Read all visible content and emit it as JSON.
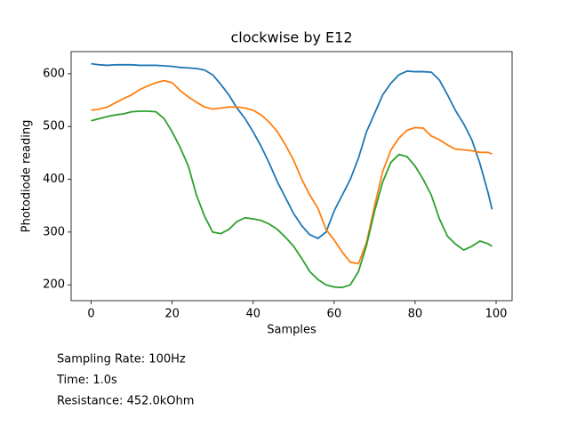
{
  "chart_data": {
    "type": "line",
    "title": "clockwise by E12",
    "x_label": "Samples",
    "y_label": "Photodiode reading",
    "x": [
      0,
      2,
      4,
      6,
      8,
      10,
      12,
      14,
      16,
      18,
      20,
      22,
      24,
      26,
      28,
      30,
      32,
      34,
      36,
      38,
      40,
      42,
      44,
      46,
      48,
      50,
      52,
      54,
      56,
      58,
      60,
      62,
      64,
      66,
      68,
      70,
      72,
      74,
      76,
      78,
      80,
      82,
      84,
      86,
      88,
      90,
      92,
      94,
      96,
      98,
      99
    ],
    "series": [
      {
        "color": "#1f77b4",
        "values": [
          619,
          617,
          616,
          617,
          617,
          617,
          616,
          616,
          616,
          615,
          614,
          612,
          611,
          610,
          607,
          598,
          580,
          560,
          535,
          515,
          490,
          462,
          430,
          395,
          365,
          335,
          312,
          295,
          288,
          300,
          340,
          370,
          400,
          440,
          490,
          525,
          560,
          582,
          598,
          605,
          604,
          604,
          603,
          588,
          560,
          530,
          505,
          475,
          430,
          375,
          343
        ]
      },
      {
        "color": "#ff7f0e",
        "values": [
          531,
          533,
          537,
          545,
          553,
          560,
          570,
          577,
          583,
          587,
          583,
          568,
          556,
          546,
          537,
          533,
          535,
          537,
          537,
          535,
          531,
          522,
          508,
          490,
          465,
          436,
          400,
          370,
          345,
          305,
          285,
          262,
          243,
          240,
          280,
          350,
          415,
          455,
          478,
          493,
          498,
          497,
          482,
          475,
          465,
          457,
          456,
          454,
          451,
          451,
          448
        ]
      },
      {
        "color": "#2ca02c",
        "values": [
          511,
          515,
          519,
          522,
          524,
          528,
          529,
          529,
          528,
          515,
          490,
          460,
          425,
          370,
          330,
          300,
          297,
          305,
          320,
          327,
          325,
          322,
          315,
          305,
          290,
          273,
          250,
          225,
          210,
          200,
          196,
          195,
          200,
          225,
          275,
          340,
          395,
          432,
          447,
          443,
          425,
          400,
          370,
          325,
          292,
          277,
          266,
          273,
          283,
          278,
          273
        ]
      }
    ],
    "xlim": [
      -4.95,
      103.95
    ],
    "xticks": [
      0,
      20,
      40,
      60,
      80,
      100
    ],
    "ylim": [
      170,
      642
    ],
    "yticks": [
      200,
      300,
      400,
      500,
      600
    ],
    "annotations": [
      "Sampling Rate: 100Hz",
      "Time: 1.0s",
      "Resistance: 452.0kOhm"
    ]
  }
}
